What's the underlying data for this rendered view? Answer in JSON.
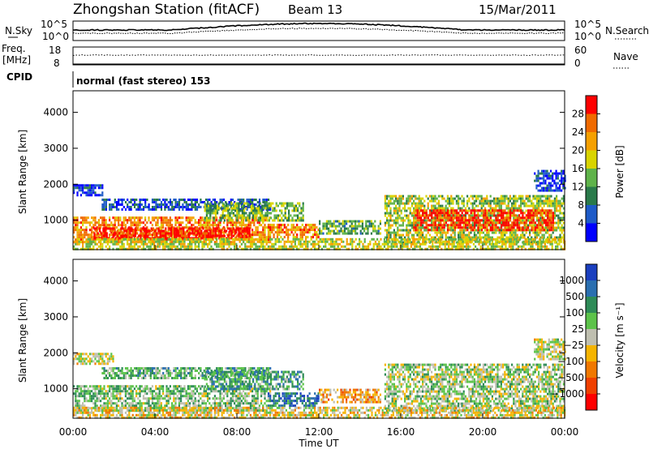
{
  "header": {
    "station": "Zhongshan Station (fitACF)",
    "beam": "Beam 13",
    "date": "15/Mar/2011"
  },
  "top_panels": {
    "nsky_label": "N.Sky",
    "nsky_ticks": [
      "10^5",
      "10^0"
    ],
    "nsearch_label": "N.Search",
    "nsearch_ticks": [
      "10^5",
      "10^0"
    ],
    "freq_label_1": "Freq.",
    "freq_label_2": "[MHz]",
    "freq_ticks": [
      "18",
      "8"
    ],
    "nave_label": "Nave",
    "nave_ticks": [
      "60",
      "0"
    ],
    "cpid_label": "CPID",
    "cpid_text": "normal (fast stereo) 153"
  },
  "chart_data": [
    {
      "type": "heatmap",
      "name": "power",
      "ylabel": "Slant Range [km]",
      "yticks": [
        "4000",
        "3000",
        "2000",
        "1000"
      ],
      "ylim": [
        180,
        4600
      ],
      "colorbar_label": "Power [dB]",
      "colorbar_ticks": [
        "28",
        "24",
        "20",
        "16",
        "12",
        "8",
        "4"
      ],
      "colorbar_colors": [
        "#0000ff",
        "#1e5bc8",
        "#2a7a4a",
        "#5fb34a",
        "#d9d400",
        "#f5a000",
        "#f06a00",
        "#ff0000"
      ],
      "regions": [
        {
          "t0": 0.0,
          "t1": 9.6,
          "r0": 400,
          "r1": 1100,
          "level": 0.75
        },
        {
          "t0": 1.0,
          "t1": 8.6,
          "r0": 500,
          "r1": 800,
          "level": 0.95
        },
        {
          "t0": 0.0,
          "t1": 1.4,
          "r0": 1700,
          "r1": 2000,
          "level": 0.15
        },
        {
          "t0": 1.4,
          "t1": 9.6,
          "r0": 1300,
          "r1": 1600,
          "level": 0.2
        },
        {
          "t0": 6.4,
          "t1": 11.2,
          "r0": 1000,
          "r1": 1500,
          "level": 0.45
        },
        {
          "t0": 9.5,
          "t1": 12.0,
          "r0": 500,
          "r1": 900,
          "level": 0.75
        },
        {
          "t0": 12.0,
          "t1": 15.0,
          "r0": 600,
          "r1": 1000,
          "level": 0.4
        },
        {
          "t0": 15.2,
          "t1": 24.0,
          "r0": 400,
          "r1": 1700,
          "level": 0.5
        },
        {
          "t0": 16.6,
          "t1": 23.4,
          "r0": 700,
          "r1": 1300,
          "level": 0.9
        },
        {
          "t0": 22.5,
          "t1": 24.0,
          "r0": 1800,
          "r1": 2400,
          "level": 0.15
        },
        {
          "t0": 0.0,
          "t1": 24.0,
          "r0": 200,
          "r1": 500,
          "level": 0.55
        }
      ]
    },
    {
      "type": "heatmap",
      "name": "velocity",
      "ylabel": "Slant Range [km]",
      "xlabel": "Time UT",
      "xticks": [
        "00:00",
        "04:00",
        "08:00",
        "12:00",
        "16:00",
        "20:00",
        "00:00"
      ],
      "xlim": [
        0,
        24
      ],
      "yticks": [
        "4000",
        "3000",
        "2000",
        "1000"
      ],
      "ylim": [
        180,
        4600
      ],
      "colorbar_label": "Velocity [m s⁻¹]",
      "colorbar_ticks": [
        "1000",
        "500",
        "100",
        "25",
        "−25",
        "−100",
        "−500",
        "−1000"
      ],
      "colorbar_colors": [
        "#1a3fbf",
        "#2b6fb0",
        "#2e8b57",
        "#5cc34a",
        "#bfbfb0",
        "#f5b400",
        "#f07800",
        "#f04000",
        "#ff0000"
      ],
      "regions": [
        {
          "t0": 0.0,
          "t1": 9.6,
          "r0": 400,
          "r1": 1100,
          "level": 0.6
        },
        {
          "t0": 0.0,
          "t1": 2.0,
          "r0": 1700,
          "r1": 2000,
          "level": 0.5
        },
        {
          "t0": 1.4,
          "t1": 9.6,
          "r0": 1300,
          "r1": 1600,
          "level": 0.65
        },
        {
          "t0": 6.4,
          "t1": 11.2,
          "r0": 1000,
          "r1": 1500,
          "level": 0.7
        },
        {
          "t0": 9.5,
          "t1": 12.0,
          "r0": 500,
          "r1": 900,
          "level": 0.82
        },
        {
          "t0": 12.0,
          "t1": 15.0,
          "r0": 600,
          "r1": 1000,
          "level": 0.35
        },
        {
          "t0": 15.2,
          "t1": 24.0,
          "r0": 400,
          "r1": 1700,
          "level": 0.55
        },
        {
          "t0": 22.5,
          "t1": 24.0,
          "r0": 1800,
          "r1": 2400,
          "level": 0.5
        },
        {
          "t0": 0.0,
          "t1": 24.0,
          "r0": 200,
          "r1": 500,
          "level": 0.45
        }
      ]
    }
  ]
}
